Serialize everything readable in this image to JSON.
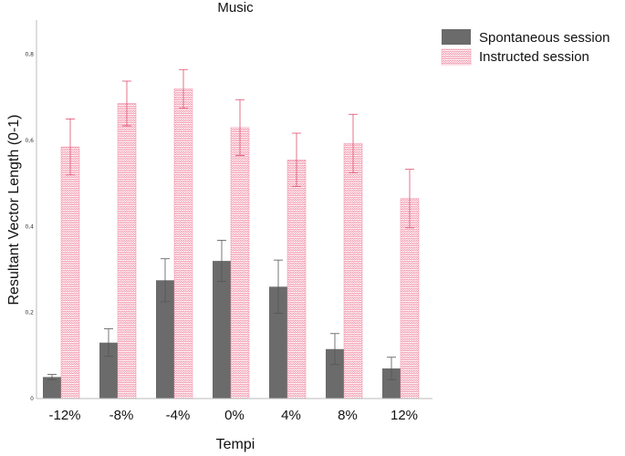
{
  "chart_data": {
    "type": "bar",
    "title": "Music",
    "xlabel": "Tempi",
    "ylabel": "Resultant Vector Length (0-1)",
    "categories": [
      "-12%",
      "-8%",
      "-4%",
      "0%",
      "4%",
      "8%",
      "12%"
    ],
    "ylim": [
      0,
      0.88
    ],
    "yticks": [
      0,
      0.2,
      0.4,
      0.6,
      0.8
    ],
    "ytick_labels": [
      "0",
      "0,2",
      "0,4",
      "0,6",
      "0,8"
    ],
    "grid": false,
    "legend_position": "top-right",
    "series": [
      {
        "name": "Spontaneous session",
        "color": "#6b6b6b",
        "values": [
          0.05,
          0.13,
          0.275,
          0.32,
          0.26,
          0.115,
          0.07
        ],
        "error": [
          0.006,
          0.032,
          0.05,
          0.048,
          0.062,
          0.036,
          0.026
        ]
      },
      {
        "name": "Instructed session",
        "color": "#f4a7b9",
        "values": [
          0.585,
          0.686,
          0.72,
          0.63,
          0.555,
          0.593,
          0.465
        ],
        "error": [
          0.065,
          0.052,
          0.045,
          0.065,
          0.062,
          0.068,
          0.068
        ]
      }
    ]
  }
}
